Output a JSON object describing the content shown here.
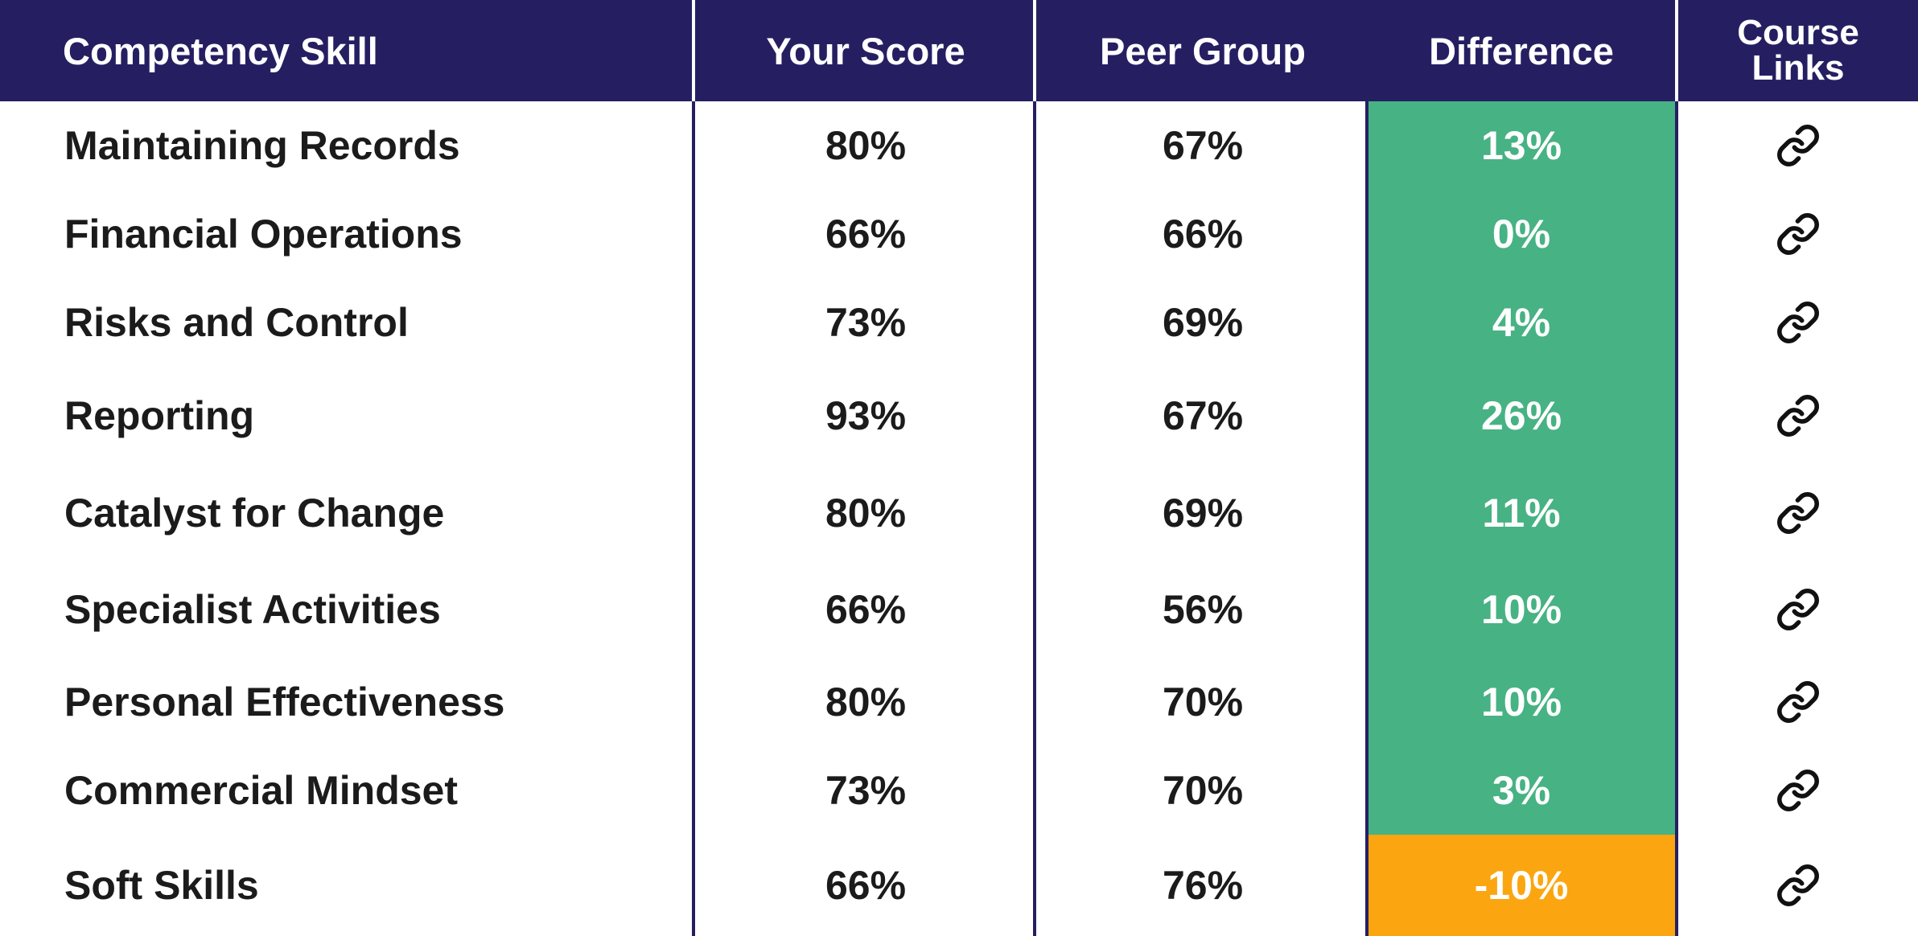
{
  "header": {
    "skill": "Competency Skill",
    "score": "Your Score",
    "peer": "Peer Group",
    "difference": "Difference",
    "links_line1": "Course",
    "links_line2": "Links"
  },
  "colors": {
    "header_bg": "#251f62",
    "positive": "#47b283",
    "negative": "#fba610"
  },
  "rows": [
    {
      "skill": "Maintaining Records",
      "score": "80%",
      "peer": "67%",
      "difference": "13%",
      "status": "positive",
      "link_icon": "link-icon"
    },
    {
      "skill": "Financial Operations",
      "score": "66%",
      "peer": "66%",
      "difference": "0%",
      "status": "positive",
      "link_icon": "link-icon"
    },
    {
      "skill": "Risks and Control",
      "score": "73%",
      "peer": "69%",
      "difference": "4%",
      "status": "positive",
      "link_icon": "link-icon"
    },
    {
      "skill": "Reporting",
      "score": "93%",
      "peer": "67%",
      "difference": "26%",
      "status": "positive",
      "link_icon": "link-icon"
    },
    {
      "skill": "Catalyst for Change",
      "score": "80%",
      "peer": "69%",
      "difference": "11%",
      "status": "positive",
      "link_icon": "link-icon"
    },
    {
      "skill": "Specialist Activities",
      "score": "66%",
      "peer": "56%",
      "difference": "10%",
      "status": "positive",
      "link_icon": "link-icon"
    },
    {
      "skill": "Personal Effectiveness",
      "score": "80%",
      "peer": "70%",
      "difference": "10%",
      "status": "positive",
      "link_icon": "link-icon"
    },
    {
      "skill": "Commercial Mindset",
      "score": "73%",
      "peer": "70%",
      "difference": "3%",
      "status": "positive",
      "link_icon": "link-icon"
    },
    {
      "skill": "Soft Skills",
      "score": "66%",
      "peer": "76%",
      "difference": "-10%",
      "status": "negative",
      "link_icon": "link-icon"
    }
  ]
}
